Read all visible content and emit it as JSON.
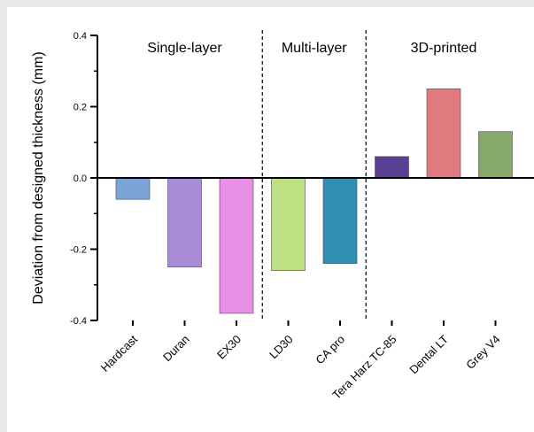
{
  "chart_data": {
    "type": "bar",
    "ylabel": "Deviation from designed thickness (mm)",
    "ylim": [
      -0.4,
      0.4
    ],
    "yticks": [
      "0.4",
      "0.2",
      "0.0",
      "-0.2",
      "-0.4"
    ],
    "yminor_step": 0.1,
    "grid": false,
    "categories": [
      "Hardcast",
      "Duran",
      "EX30",
      "LD30",
      "CA pro",
      "Tera Harz TC-85",
      "Dental LT",
      "Grey V4"
    ],
    "values": [
      -0.06,
      -0.25,
      -0.38,
      -0.26,
      -0.24,
      0.06,
      0.25,
      0.13
    ],
    "colors": [
      "#7ca3d6",
      "#a98bd6",
      "#e88fe6",
      "#bde082",
      "#2f8fb3",
      "#5b3f94",
      "#e07a7f",
      "#85a86b"
    ],
    "groups": [
      {
        "label": "Single-layer",
        "start": 0,
        "end": 2
      },
      {
        "label": "Multi-layer",
        "start": 3,
        "end": 4
      },
      {
        "label": "3D-printed",
        "start": 5,
        "end": 7
      }
    ]
  }
}
